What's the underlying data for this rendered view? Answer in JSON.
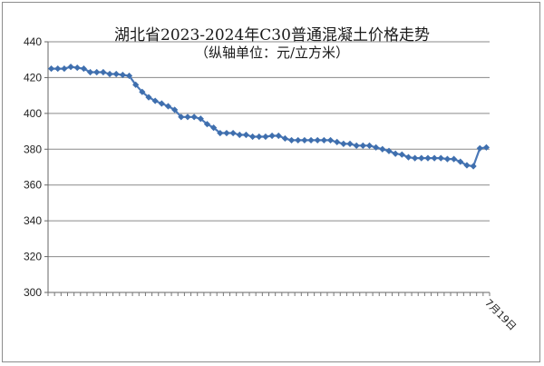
{
  "chart_data": {
    "type": "line",
    "title": "湖北省2023-2024年C30普通混凝土价格走势",
    "subtitle": "（纵轴单位：元/立方米）",
    "xlabel": "",
    "ylabel": "",
    "ylim": [
      300,
      440
    ],
    "yticks": [
      300,
      320,
      340,
      360,
      380,
      400,
      420,
      440
    ],
    "grid": "horizontal",
    "legend": "none",
    "colors": {
      "line": "#4a78b8",
      "marker": "#3f6fae",
      "grid": "#8a8a8a"
    },
    "x_last_label": "7月19日",
    "series": [
      {
        "values": [
          425,
          425,
          425,
          426,
          425.5,
          425,
          423,
          423,
          423,
          422,
          422,
          421.5,
          421,
          416,
          412,
          409,
          407,
          405.5,
          404,
          402,
          398,
          398,
          398,
          397,
          394,
          392,
          389,
          389,
          389,
          388,
          388,
          387,
          387,
          387,
          387.5,
          387.5,
          386,
          385,
          385,
          385,
          385,
          385,
          385,
          385,
          384,
          383,
          383,
          382,
          382,
          382,
          381,
          380,
          379,
          377.5,
          377,
          375.5,
          375,
          375,
          375,
          375,
          375,
          374.5,
          374.5,
          373,
          371,
          370.5,
          380.5,
          381
        ]
      }
    ]
  }
}
